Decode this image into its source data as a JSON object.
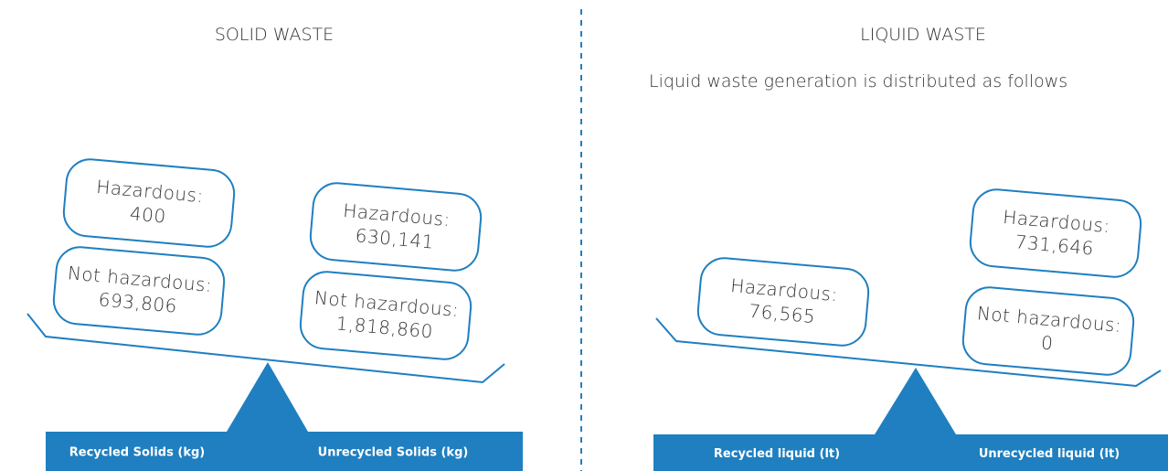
{
  "panels": [
    {
      "title": "SOLID WASTE",
      "left": {
        "label": "Recycled Solids (kg)",
        "boxes": [
          {
            "label": "Hazardous:",
            "value": "400"
          },
          {
            "label": "Not hazardous:",
            "value": "693,806"
          }
        ]
      },
      "right": {
        "label": "Unrecycled Solids (kg)",
        "boxes": [
          {
            "label": "Hazardous:",
            "value": "630,141"
          },
          {
            "label": "Not hazardous:",
            "value": "1,818,860"
          }
        ]
      }
    },
    {
      "title": "LIQUID WASTE",
      "subtitle": "Liquid waste generation is distributed as follows",
      "left": {
        "label": "Recycled liquid (lt)",
        "boxes": [
          {
            "label": "Hazardous:",
            "value": "76,565"
          }
        ]
      },
      "right": {
        "label": "Unrecycled liquid (lt)",
        "boxes": [
          {
            "label": "Hazardous:",
            "value": "731,646"
          },
          {
            "label": "Not hazardous:",
            "value": "0"
          }
        ]
      }
    }
  ]
}
